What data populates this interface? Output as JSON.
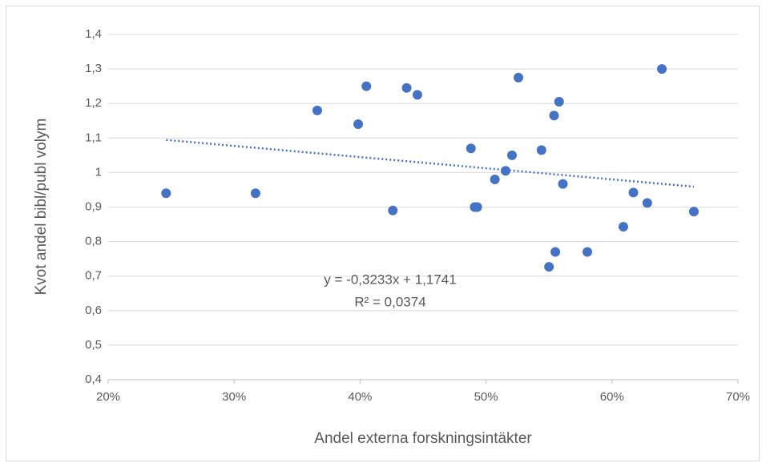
{
  "chart_data": {
    "type": "scatter",
    "x_label": "Andel externa forskningsintäkter",
    "y_label": "Kvot andel bibl/publ volym",
    "x": [
      0.246,
      0.317,
      0.366,
      0.3985,
      0.405,
      0.426,
      0.437,
      0.4455,
      0.488,
      0.491,
      0.493,
      0.507,
      0.5155,
      0.5206,
      0.5257,
      0.544,
      0.55,
      0.554,
      0.555,
      0.558,
      0.561,
      0.5804,
      0.609,
      0.617,
      0.628,
      0.6396,
      0.665
    ],
    "values": [
      0.94,
      0.94,
      1.18,
      1.14,
      1.25,
      0.89,
      1.245,
      1.225,
      1.07,
      0.9,
      0.9,
      0.98,
      1.005,
      1.05,
      1.275,
      1.065,
      0.727,
      1.165,
      0.77,
      1.205,
      0.967,
      0.77,
      0.843,
      0.942,
      0.912,
      1.3,
      0.887
    ],
    "color": "#4472c4",
    "xlim": [
      0.2,
      0.7
    ],
    "xticks": [
      {
        "value": 0.2,
        "label": "20%"
      },
      {
        "value": 0.3,
        "label": "30%"
      },
      {
        "value": 0.4,
        "label": "40%"
      },
      {
        "value": 0.5,
        "label": "50%"
      },
      {
        "value": 0.6,
        "label": "60%"
      },
      {
        "value": 0.7,
        "label": "70%"
      }
    ],
    "ylim": [
      0.4,
      1.4
    ],
    "yticks": [
      {
        "value": 0.4,
        "label": "0,4"
      },
      {
        "value": 0.5,
        "label": "0,5"
      },
      {
        "value": 0.6,
        "label": "0,6"
      },
      {
        "value": 0.7,
        "label": "0,7"
      },
      {
        "value": 0.8,
        "label": "0,8"
      },
      {
        "value": 0.9,
        "label": "0,9"
      },
      1,
      {
        "value": 1.1,
        "label": "1,1"
      },
      {
        "value": 1.2,
        "label": "1,2"
      },
      {
        "value": 1.3,
        "label": "1,3"
      },
      {
        "value": 1.4,
        "label": "1,4"
      }
    ],
    "grid": true,
    "trendline": {
      "slope": -0.3233,
      "intercept": 1.1741,
      "equation": "y = -0,3233x + 1,1741",
      "r2": "R² = 0,0374"
    }
  }
}
